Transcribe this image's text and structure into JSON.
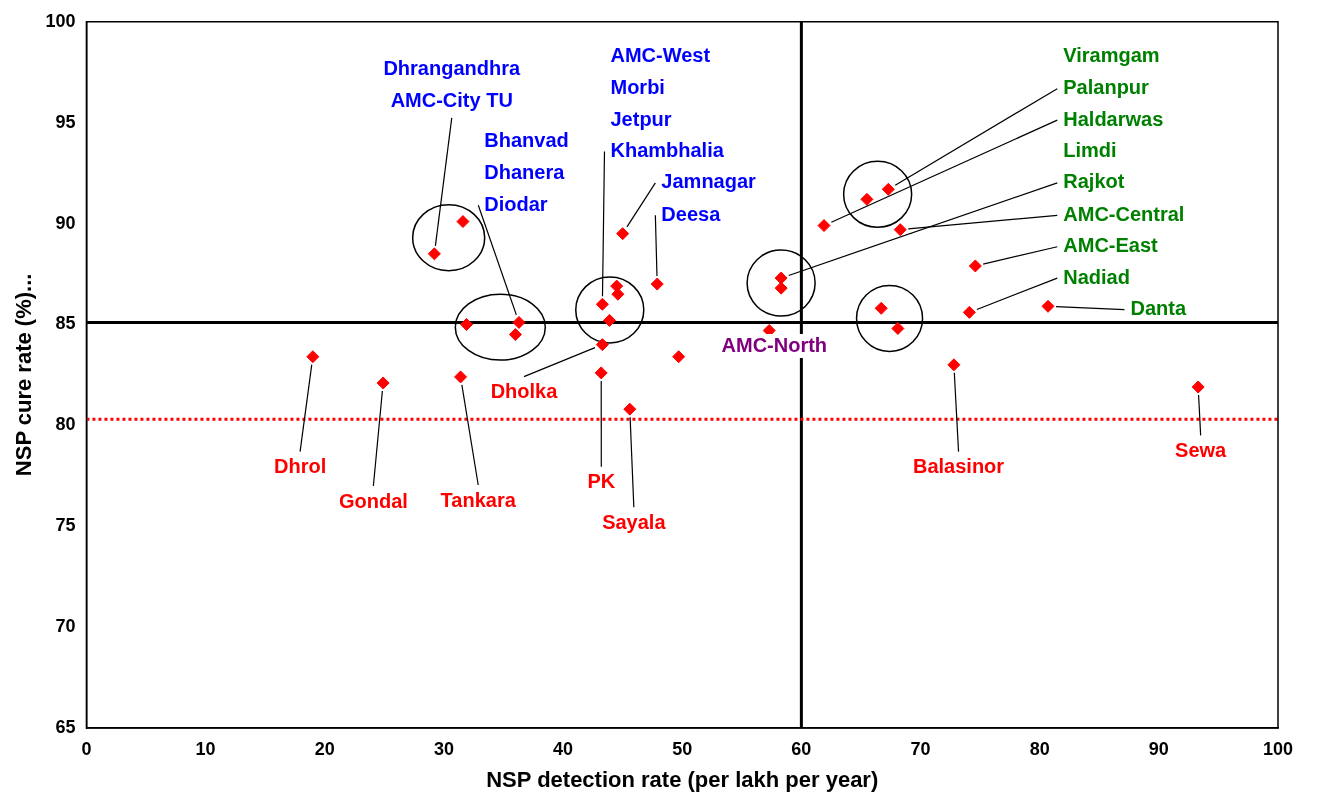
{
  "chart_data": {
    "type": "scatter",
    "xlabel": "NSP detection rate (per lakh per year)",
    "ylabel": "NSP cure rate (%)...",
    "series": [
      {
        "color": "#ff0000",
        "x": [
          29.2,
          31.6,
          31.9,
          36.3,
          36.0,
          43.3,
          43.2,
          43.3,
          43.9,
          44.5,
          44.6,
          45.0,
          45.6,
          47.9,
          49.7,
          57.3,
          58.3,
          58.3,
          61.9,
          65.5,
          67.3,
          68.3,
          74.6,
          74.1,
          80.7,
          66.7,
          68.1,
          72.8,
          93.3,
          19.0,
          24.9,
          31.4
        ],
        "values": [
          88.5,
          90.1,
          85.0,
          85.1,
          84.5,
          84.0,
          82.6,
          86.0,
          85.2,
          86.9,
          86.5,
          89.5,
          80.8,
          87.0,
          83.4,
          84.7,
          87.3,
          86.8,
          89.9,
          91.2,
          91.7,
          89.7,
          87.9,
          85.6,
          85.9,
          85.8,
          84.8,
          83.0,
          81.9,
          83.4,
          82.1,
          82.4
        ]
      }
    ],
    "marker": "diamond",
    "xlim": [
      0,
      100
    ],
    "xticks": [
      0,
      10,
      20,
      30,
      40,
      50,
      60,
      70,
      80,
      90,
      100
    ],
    "ylim": [
      65,
      100
    ],
    "yticks": [
      65,
      70,
      75,
      80,
      85,
      90,
      95,
      100
    ],
    "grid": false,
    "legend": false,
    "ref_lines": [
      {
        "axis": "x",
        "value": 60,
        "color": "#000000",
        "line_style": "solid"
      },
      {
        "axis": "y",
        "value": 85.1,
        "color": "#000000",
        "line_style": "solid"
      },
      {
        "axis": "y",
        "value": 80.3,
        "color": "#ff0000",
        "line_style": "dotted"
      }
    ],
    "annotations": [
      "Dhrangandhra",
      {
        "text": "AMC-City TU",
        "x": 29.2,
        "y": 88.5
      },
      "Bhanvad",
      "Dhanera",
      {
        "text": "Diodar",
        "x": 36.3,
        "y": 85.1
      },
      "AMC-West",
      "Morbi",
      "Jetpur",
      {
        "text": "Khambhalia",
        "x": 43.3,
        "y": 86.0
      },
      {
        "text": "Jamnagar",
        "x": 45.0,
        "y": 89.5
      },
      {
        "text": "Deesa",
        "x": 47.9,
        "y": 87.0
      },
      "Viramgam",
      {
        "text": "Palanpur",
        "x": 67.3,
        "y": 91.7
      },
      {
        "text": "Haldarwas",
        "x": 61.9,
        "y": 89.9
      },
      "Limdi",
      {
        "text": "Rajkot",
        "x": 58.3,
        "y": 87.3
      },
      {
        "text": "AMC-Central",
        "x": 68.3,
        "y": 89.7
      },
      {
        "text": "AMC-East",
        "x": 74.6,
        "y": 87.9
      },
      {
        "text": "Nadiad",
        "x": 74.1,
        "y": 85.6
      },
      {
        "text": "Danta",
        "x": 80.7,
        "y": 85.9
      },
      "AMC-North",
      {
        "text": "Dhrol",
        "x": 19.0,
        "y": 83.4
      },
      {
        "text": "Gondal",
        "x": 24.9,
        "y": 82.1
      },
      {
        "text": "Tankara",
        "x": 31.4,
        "y": 82.4
      },
      {
        "text": "Dholka",
        "x": 43.3,
        "y": 84.0
      },
      {
        "text": "PK",
        "x": 43.2,
        "y": 82.6
      },
      {
        "text": "Sayala",
        "x": 45.6,
        "y": 80.8
      },
      {
        "text": "Balasinor",
        "x": 72.8,
        "y": 83.0
      },
      {
        "text": "Sewa",
        "x": 93.3,
        "y": 81.9
      }
    ]
  }
}
